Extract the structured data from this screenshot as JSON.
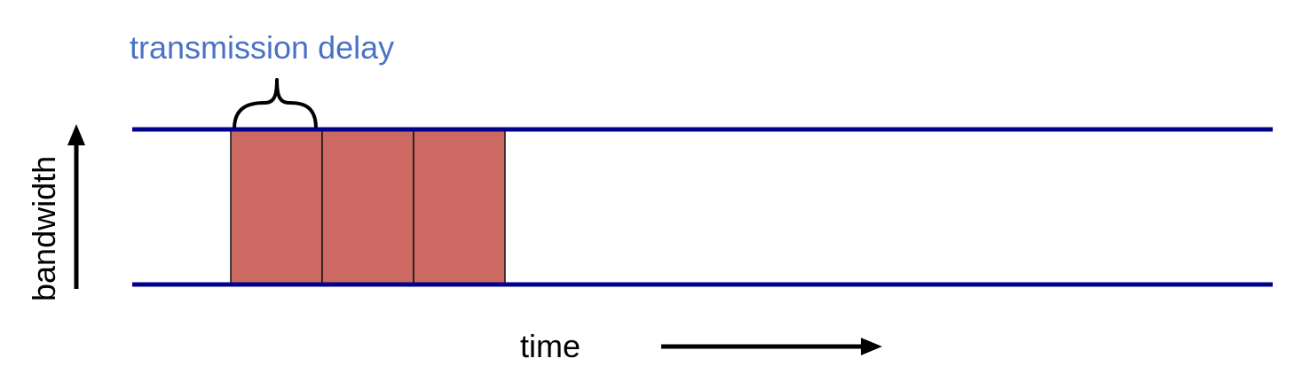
{
  "labels": {
    "transmission_delay": "transmission delay",
    "bandwidth": "bandwidth",
    "time": "time"
  },
  "packets": {
    "count": 3
  },
  "colors": {
    "line": "#00008B",
    "packet_fill": "#CD6963",
    "packet_stroke": "#111111",
    "delay_label": "#4A72C4",
    "text": "#000000",
    "arrow": "#000000"
  },
  "icons": {
    "bracket": "curly-brace-icon",
    "bandwidth_arrow": "arrow-up-icon",
    "time_arrow": "arrow-right-icon"
  }
}
